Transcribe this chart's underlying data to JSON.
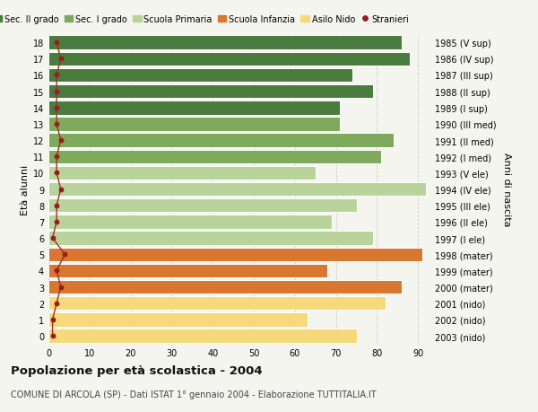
{
  "ages": [
    18,
    17,
    16,
    15,
    14,
    13,
    12,
    11,
    10,
    9,
    8,
    7,
    6,
    5,
    4,
    3,
    2,
    1,
    0
  ],
  "values": [
    86,
    88,
    74,
    79,
    71,
    71,
    84,
    81,
    65,
    92,
    75,
    69,
    79,
    91,
    68,
    86,
    82,
    63,
    75
  ],
  "stranieri": [
    2,
    3,
    2,
    2,
    2,
    2,
    3,
    2,
    2,
    3,
    2,
    2,
    1,
    4,
    2,
    3,
    2,
    1,
    1
  ],
  "right_labels": [
    "1985 (V sup)",
    "1986 (IV sup)",
    "1987 (III sup)",
    "1988 (II sup)",
    "1989 (I sup)",
    "1990 (III med)",
    "1991 (II med)",
    "1992 (I med)",
    "1993 (V ele)",
    "1994 (IV ele)",
    "1995 (III ele)",
    "1996 (II ele)",
    "1997 (I ele)",
    "1998 (mater)",
    "1999 (mater)",
    "2000 (mater)",
    "2001 (nido)",
    "2002 (nido)",
    "2003 (nido)"
  ],
  "bar_colors": [
    "#4a7c3f",
    "#4a7c3f",
    "#4a7c3f",
    "#4a7c3f",
    "#4a7c3f",
    "#7faa5e",
    "#7faa5e",
    "#7faa5e",
    "#b8d49a",
    "#b8d49a",
    "#b8d49a",
    "#b8d49a",
    "#b8d49a",
    "#d87730",
    "#d87730",
    "#d87730",
    "#f5d97a",
    "#f5d97a",
    "#f5d97a"
  ],
  "stranieri_dot_color": "#9b1c1c",
  "stranieri_line_color": "#a03020",
  "legend_labels": [
    "Sec. II grado",
    "Sec. I grado",
    "Scuola Primaria",
    "Scuola Infanzia",
    "Asilo Nido",
    "Stranieri"
  ],
  "legend_colors": [
    "#4a7c3f",
    "#7faa5e",
    "#b8d49a",
    "#d87730",
    "#f5d97a",
    "#9b1c1c"
  ],
  "title": "Popolazione per età scolastica - 2004",
  "subtitle": "COMUNE DI ARCOLA (SP) - Dati ISTAT 1° gennaio 2004 - Elaborazione TUTTITALIA.IT",
  "ylabel": "Età alunni",
  "ylabel2": "Anni di nascita",
  "xlim": [
    0,
    93
  ],
  "grid_color": "#cccccc",
  "bg_color": "#f5f5f0",
  "bar_edgecolor": "white"
}
